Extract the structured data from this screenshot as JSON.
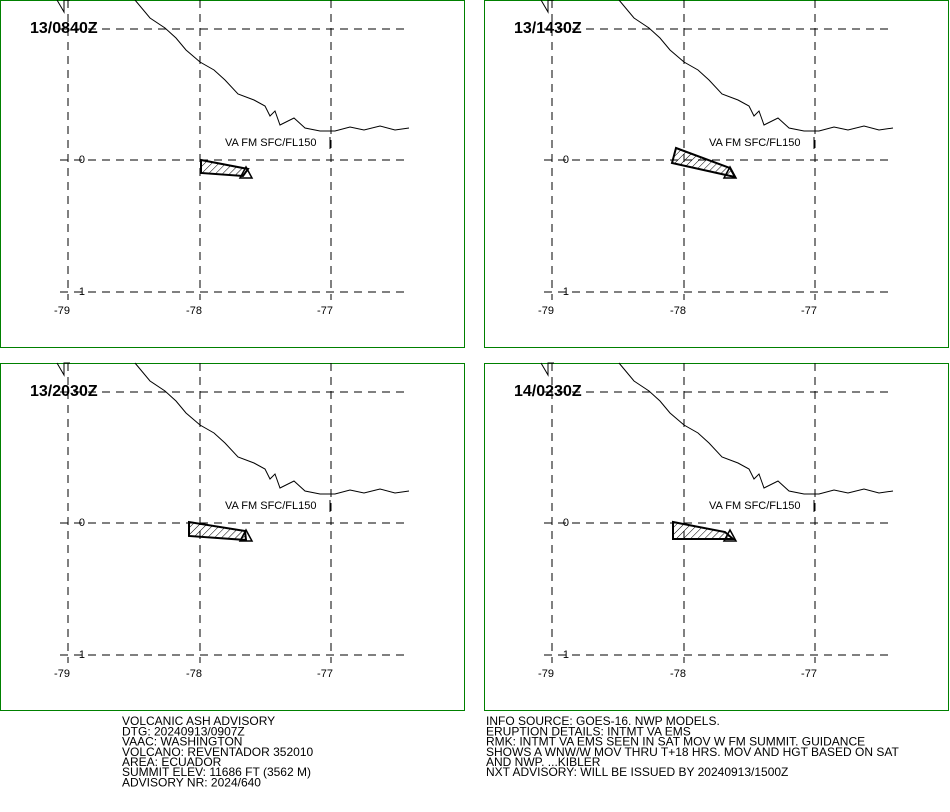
{
  "panels": [
    {
      "time": "13/0840Z",
      "label": "VA FM SFC/FL150"
    },
    {
      "time": "13/1430Z",
      "label": "VA FM SFC/FL150"
    },
    {
      "time": "13/2030Z",
      "label": "VA FM SFC/FL150"
    },
    {
      "time": "14/0230Z",
      "label": "VA FM SFC/FL150"
    }
  ],
  "grid": {
    "lat_labels": [
      0,
      -1
    ],
    "lon_labels": [
      -79,
      -78,
      -77
    ]
  },
  "advisory": {
    "left": [
      "VOLCANIC ASH ADVISORY",
      "DTG: 20240913/0907Z",
      "VAAC: WASHINGTON",
      "VOLCANO: REVENTADOR 352010",
      "AREA: ECUADOR",
      "SUMMIT ELEV: 11686 FT (3562 M)",
      "ADVISORY NR: 2024/640"
    ],
    "right": [
      "INFO SOURCE: GOES-16. NWP MODELS.",
      "ERUPTION DETAILS: INTMT VA EMS",
      "RMK: INTMT VA EMS SEEN IN SAT MOV W FM SUMMIT. GUIDANCE",
      "SHOWS A WNW/W MOV THRU T+18 HRS. MOV AND HGT BASED ON SAT",
      "AND NWP. ...KIBLER",
      "NXT ADVISORY: WILL BE ISSUED BY 20240913/1500Z"
    ]
  }
}
